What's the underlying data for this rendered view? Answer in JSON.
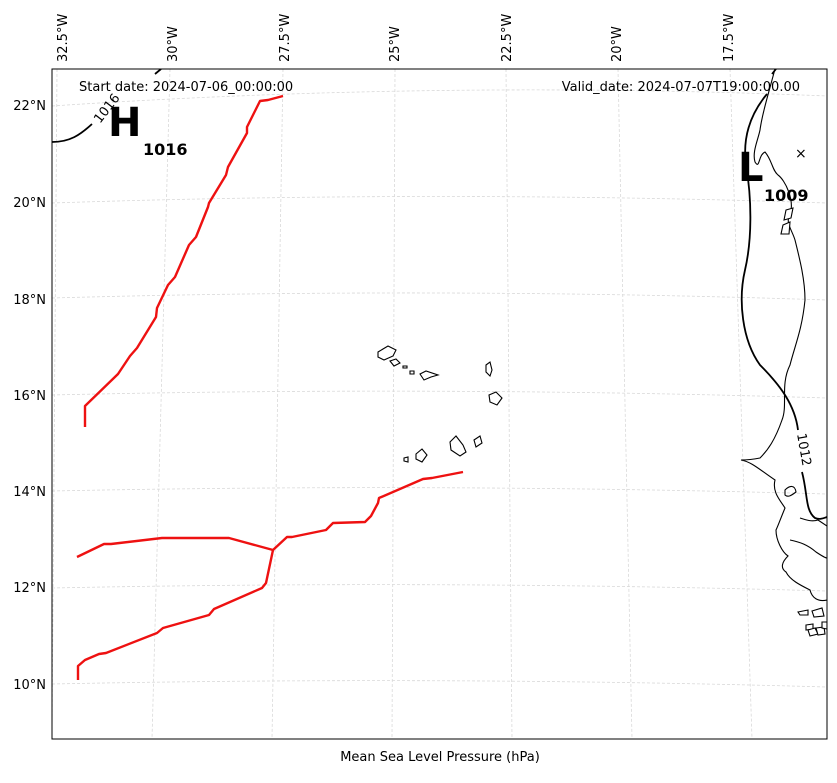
{
  "map": {
    "start_date": "Start date: 2024-07-06_00:00:00",
    "valid_date": "Valid_date: 2024-07-07T19:00:00.00",
    "footer_label": "Mean Sea Level Pressure (hPa)",
    "lon_labels": [
      "32.5°W",
      "30°W",
      "27.5°W",
      "25°W",
      "22.5°W",
      "20°W",
      "17.5°W"
    ],
    "lat_labels": [
      "22°N",
      "20°N",
      "18°N",
      "16°N",
      "14°N",
      "12°N",
      "10°N"
    ],
    "high_center": {
      "letter": "H",
      "value": "1016"
    },
    "low_center": {
      "letter": "L",
      "value": "1009",
      "marker": "×"
    },
    "contour_labels": [
      "1016",
      "1012"
    ],
    "colors": {
      "track": "#ee1111",
      "grid": "#d9d9d9",
      "isobar": "#000000"
    }
  }
}
